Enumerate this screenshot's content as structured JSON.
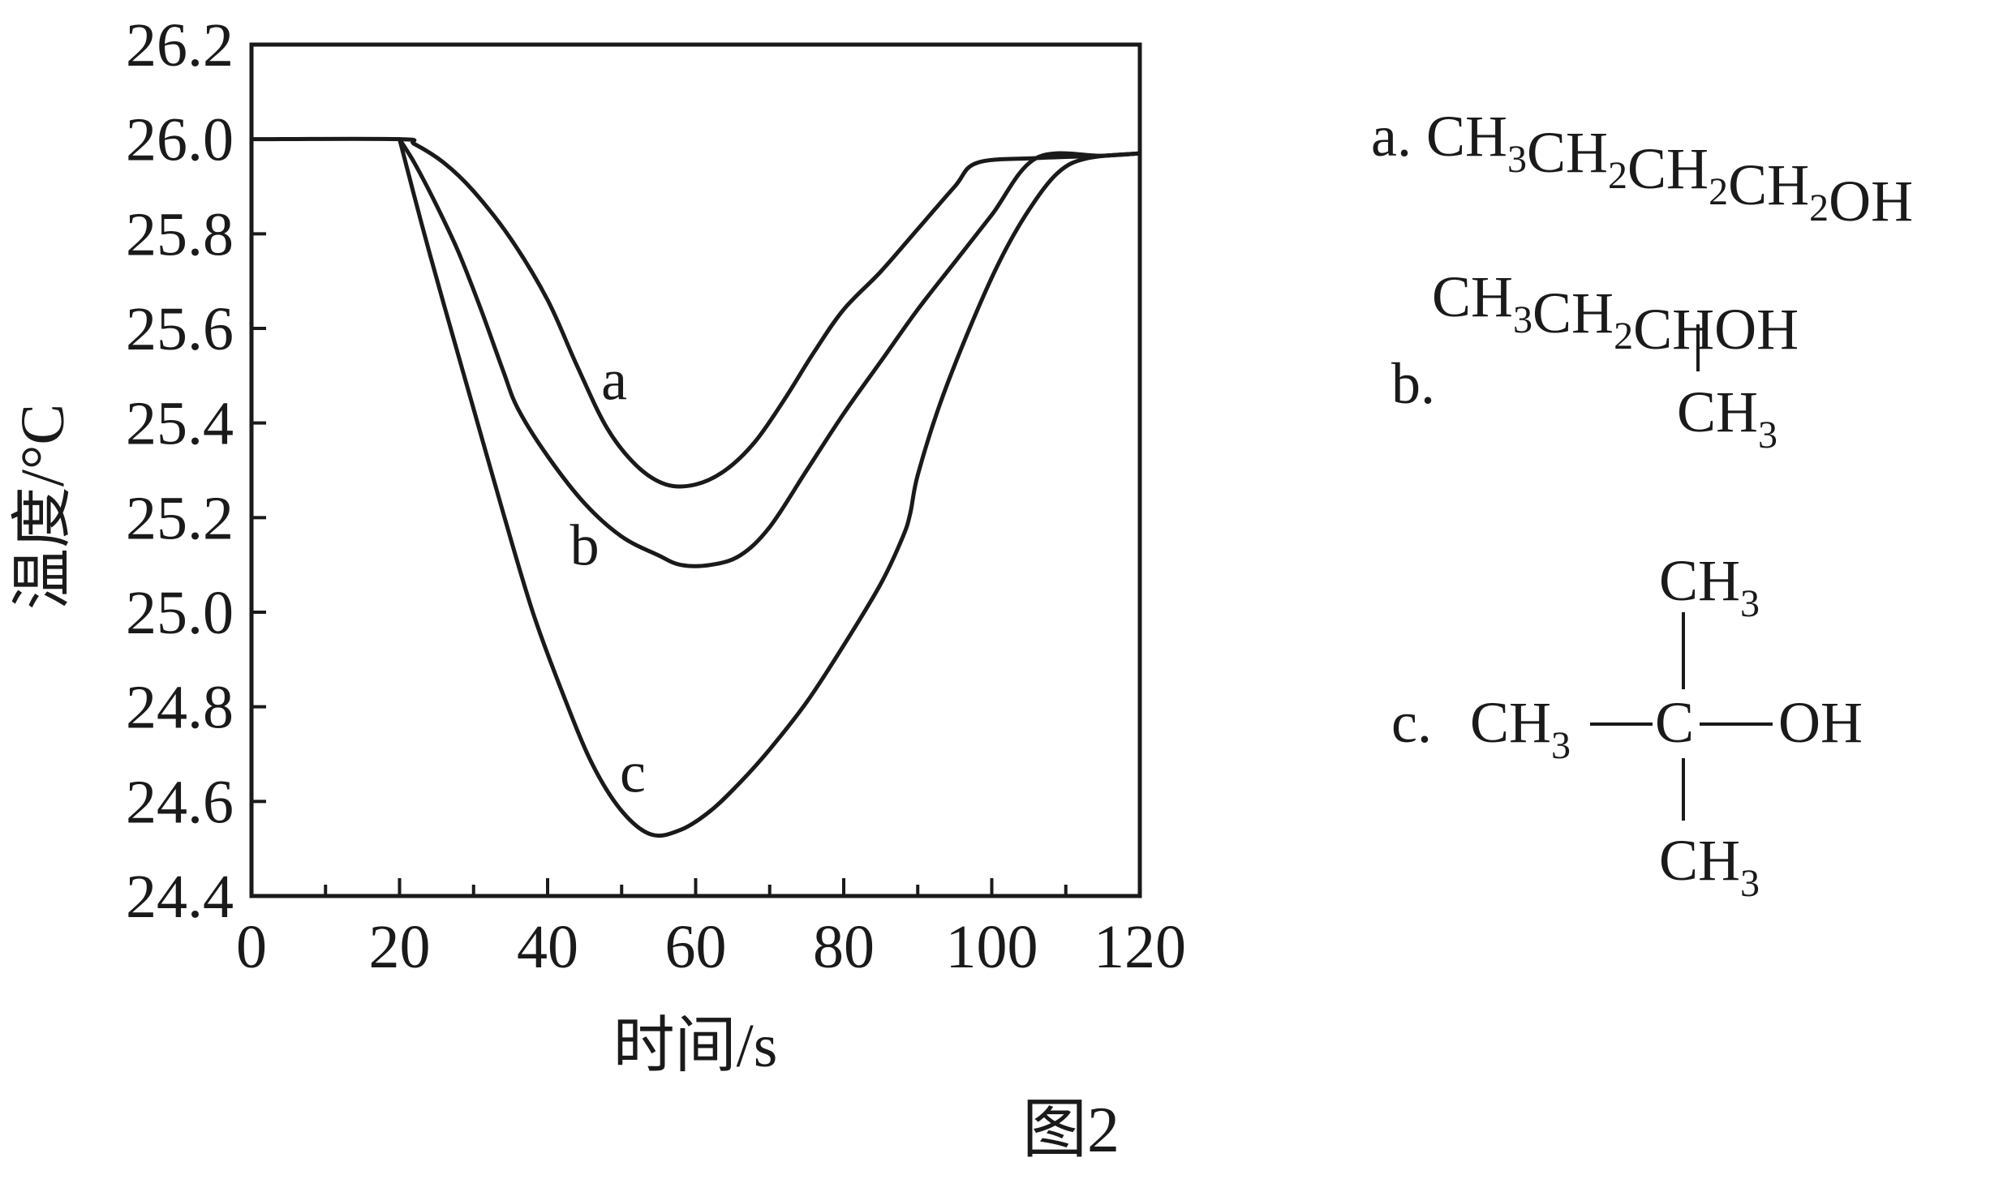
{
  "figure_caption": "图2",
  "chart_data": {
    "type": "line",
    "title": "",
    "xlabel": "时间/s",
    "ylabel": "温度/°C",
    "xlim": [
      0,
      120
    ],
    "ylim": [
      24.4,
      26.2
    ],
    "x_ticks": [
      0,
      20,
      40,
      60,
      80,
      100,
      120
    ],
    "x_tick_labels": [
      "0",
      "20",
      "40",
      "60",
      "80",
      "100",
      "120"
    ],
    "x_minor_ticks": [
      10,
      30,
      50,
      70,
      90,
      110
    ],
    "y_ticks": [
      24.4,
      24.6,
      24.8,
      25.0,
      25.2,
      25.4,
      25.6,
      25.8,
      26.0,
      26.2
    ],
    "y_tick_labels": [
      "24.4",
      "24.6",
      "24.8",
      "25.0",
      "25.2",
      "25.4",
      "25.6",
      "25.8",
      "26.0",
      "26.2"
    ],
    "grid": false,
    "series": [
      {
        "name": "a",
        "x": [
          0,
          20,
          22,
          26,
          30,
          35,
          40,
          44,
          48,
          52,
          56,
          60,
          64,
          68,
          72,
          76,
          80,
          85,
          90,
          95,
          98,
          106,
          115,
          120
        ],
        "y": [
          26.0,
          26.0,
          25.99,
          25.95,
          25.89,
          25.79,
          25.66,
          25.52,
          25.39,
          25.31,
          25.27,
          25.27,
          25.3,
          25.36,
          25.45,
          25.55,
          25.64,
          25.72,
          25.81,
          25.9,
          25.95,
          25.96,
          25.965,
          25.97
        ]
      },
      {
        "name": "b",
        "x": [
          20,
          22,
          25,
          28,
          31,
          34,
          36,
          40,
          45,
          50,
          55,
          58,
          62,
          66,
          70,
          75,
          80,
          85,
          90,
          95,
          100,
          106,
          115,
          120
        ],
        "y": [
          26.0,
          25.95,
          25.86,
          25.76,
          25.64,
          25.51,
          25.43,
          25.33,
          25.23,
          25.16,
          25.12,
          25.1,
          25.1,
          25.12,
          25.18,
          25.3,
          25.42,
          25.53,
          25.64,
          25.74,
          25.84,
          25.96,
          25.965,
          25.97
        ]
      },
      {
        "name": "c",
        "x": [
          20,
          23,
          26,
          30,
          34,
          38,
          42,
          46,
          50,
          54,
          58,
          62,
          66,
          70,
          75,
          80,
          85,
          88,
          89,
          90,
          93,
          97,
          101,
          105,
          109,
          113,
          120
        ],
        "y": [
          26.0,
          25.82,
          25.65,
          25.43,
          25.21,
          25.0,
          24.83,
          24.68,
          24.58,
          24.53,
          24.54,
          24.58,
          24.64,
          24.71,
          24.81,
          24.93,
          25.06,
          25.16,
          25.21,
          25.29,
          25.44,
          25.6,
          25.74,
          25.85,
          25.93,
          25.96,
          25.97
        ]
      }
    ],
    "annotations": [
      {
        "text": "a",
        "x": 49,
        "y": 25.45
      },
      {
        "text": "b",
        "x": 45,
        "y": 25.1
      },
      {
        "text": "c",
        "x": 51.5,
        "y": 24.62
      }
    ]
  },
  "compounds": [
    {
      "label": "a.",
      "formula": "CH3CH2CH2CH2OH"
    },
    {
      "label": "b.",
      "formula_main": "CH3CH2CHOH",
      "formula_branch": "CH3"
    },
    {
      "label": "c.",
      "left": "CH3",
      "center": "C",
      "right": "OH",
      "top": "CH3",
      "bottom": "CH3"
    }
  ]
}
